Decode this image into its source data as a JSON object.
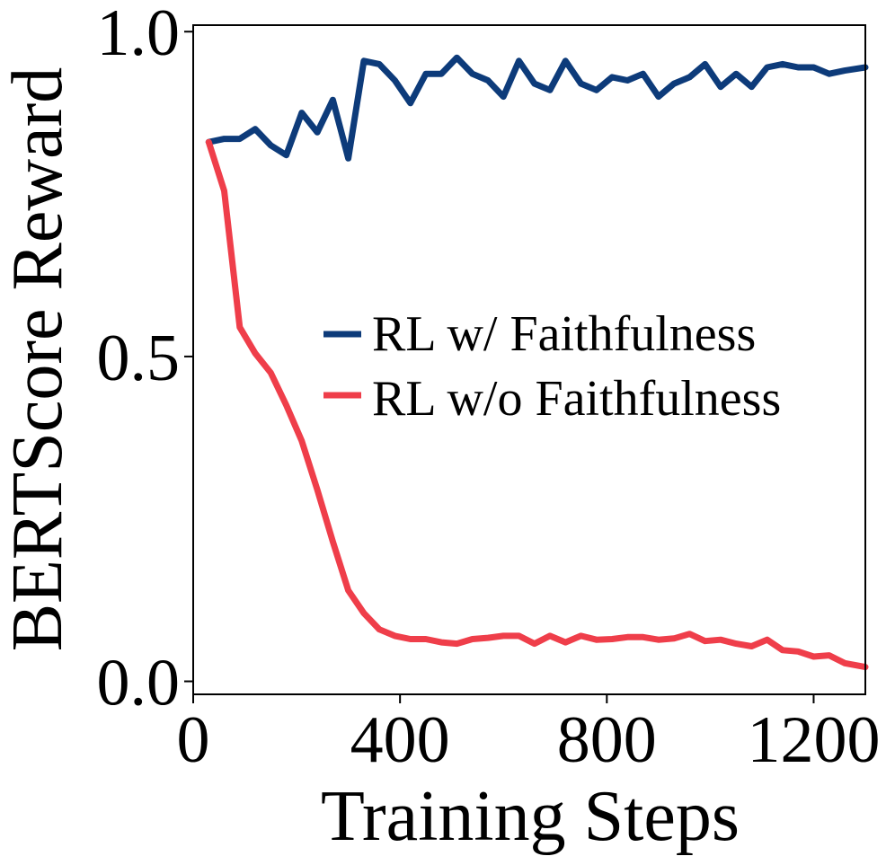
{
  "chart_data": {
    "type": "line",
    "title": "",
    "xlabel": "Training Steps",
    "ylabel": "BERTScore Reward",
    "xlim": [
      0,
      1300
    ],
    "ylim": [
      -0.02,
      1.01
    ],
    "xticks": [
      0,
      400,
      800,
      1200
    ],
    "xtick_labels": [
      "0",
      "400",
      "800",
      "1200"
    ],
    "yticks": [
      0.0,
      0.5,
      1.0
    ],
    "ytick_labels": [
      "0.0",
      "0.5",
      "1.0"
    ],
    "grid": false,
    "legend_position": "center-right",
    "series": [
      {
        "name": "RL w/ Faithfulness",
        "color": "#0d3b7a",
        "x": [
          30,
          60,
          90,
          120,
          150,
          180,
          210,
          240,
          270,
          300,
          330,
          360,
          390,
          420,
          450,
          480,
          510,
          540,
          570,
          600,
          630,
          660,
          690,
          720,
          750,
          780,
          810,
          840,
          870,
          900,
          930,
          960,
          990,
          1020,
          1050,
          1080,
          1110,
          1140,
          1170,
          1200,
          1230,
          1260,
          1300
        ],
        "y": [
          0.83,
          0.835,
          0.835,
          0.85,
          0.825,
          0.81,
          0.875,
          0.845,
          0.895,
          0.805,
          0.955,
          0.95,
          0.925,
          0.89,
          0.935,
          0.935,
          0.96,
          0.935,
          0.925,
          0.9,
          0.955,
          0.92,
          0.91,
          0.955,
          0.92,
          0.91,
          0.93,
          0.925,
          0.935,
          0.9,
          0.92,
          0.93,
          0.95,
          0.915,
          0.935,
          0.915,
          0.945,
          0.95,
          0.945,
          0.945,
          0.935,
          0.94,
          0.945
        ]
      },
      {
        "name": "RL w/o Faithfulness",
        "color": "#ef3e4a",
        "x": [
          30,
          60,
          90,
          120,
          150,
          180,
          210,
          240,
          270,
          300,
          330,
          360,
          390,
          420,
          450,
          480,
          510,
          540,
          570,
          600,
          630,
          660,
          690,
          720,
          750,
          780,
          810,
          840,
          870,
          900,
          930,
          960,
          990,
          1020,
          1050,
          1080,
          1110,
          1140,
          1170,
          1200,
          1230,
          1260,
          1300
        ],
        "y": [
          0.83,
          0.755,
          0.545,
          0.505,
          0.475,
          0.425,
          0.37,
          0.295,
          0.215,
          0.14,
          0.105,
          0.08,
          0.07,
          0.065,
          0.065,
          0.06,
          0.058,
          0.065,
          0.067,
          0.07,
          0.07,
          0.058,
          0.07,
          0.06,
          0.07,
          0.064,
          0.065,
          0.068,
          0.068,
          0.064,
          0.066,
          0.073,
          0.062,
          0.064,
          0.058,
          0.054,
          0.064,
          0.048,
          0.046,
          0.038,
          0.04,
          0.028,
          0.022
        ]
      }
    ]
  }
}
